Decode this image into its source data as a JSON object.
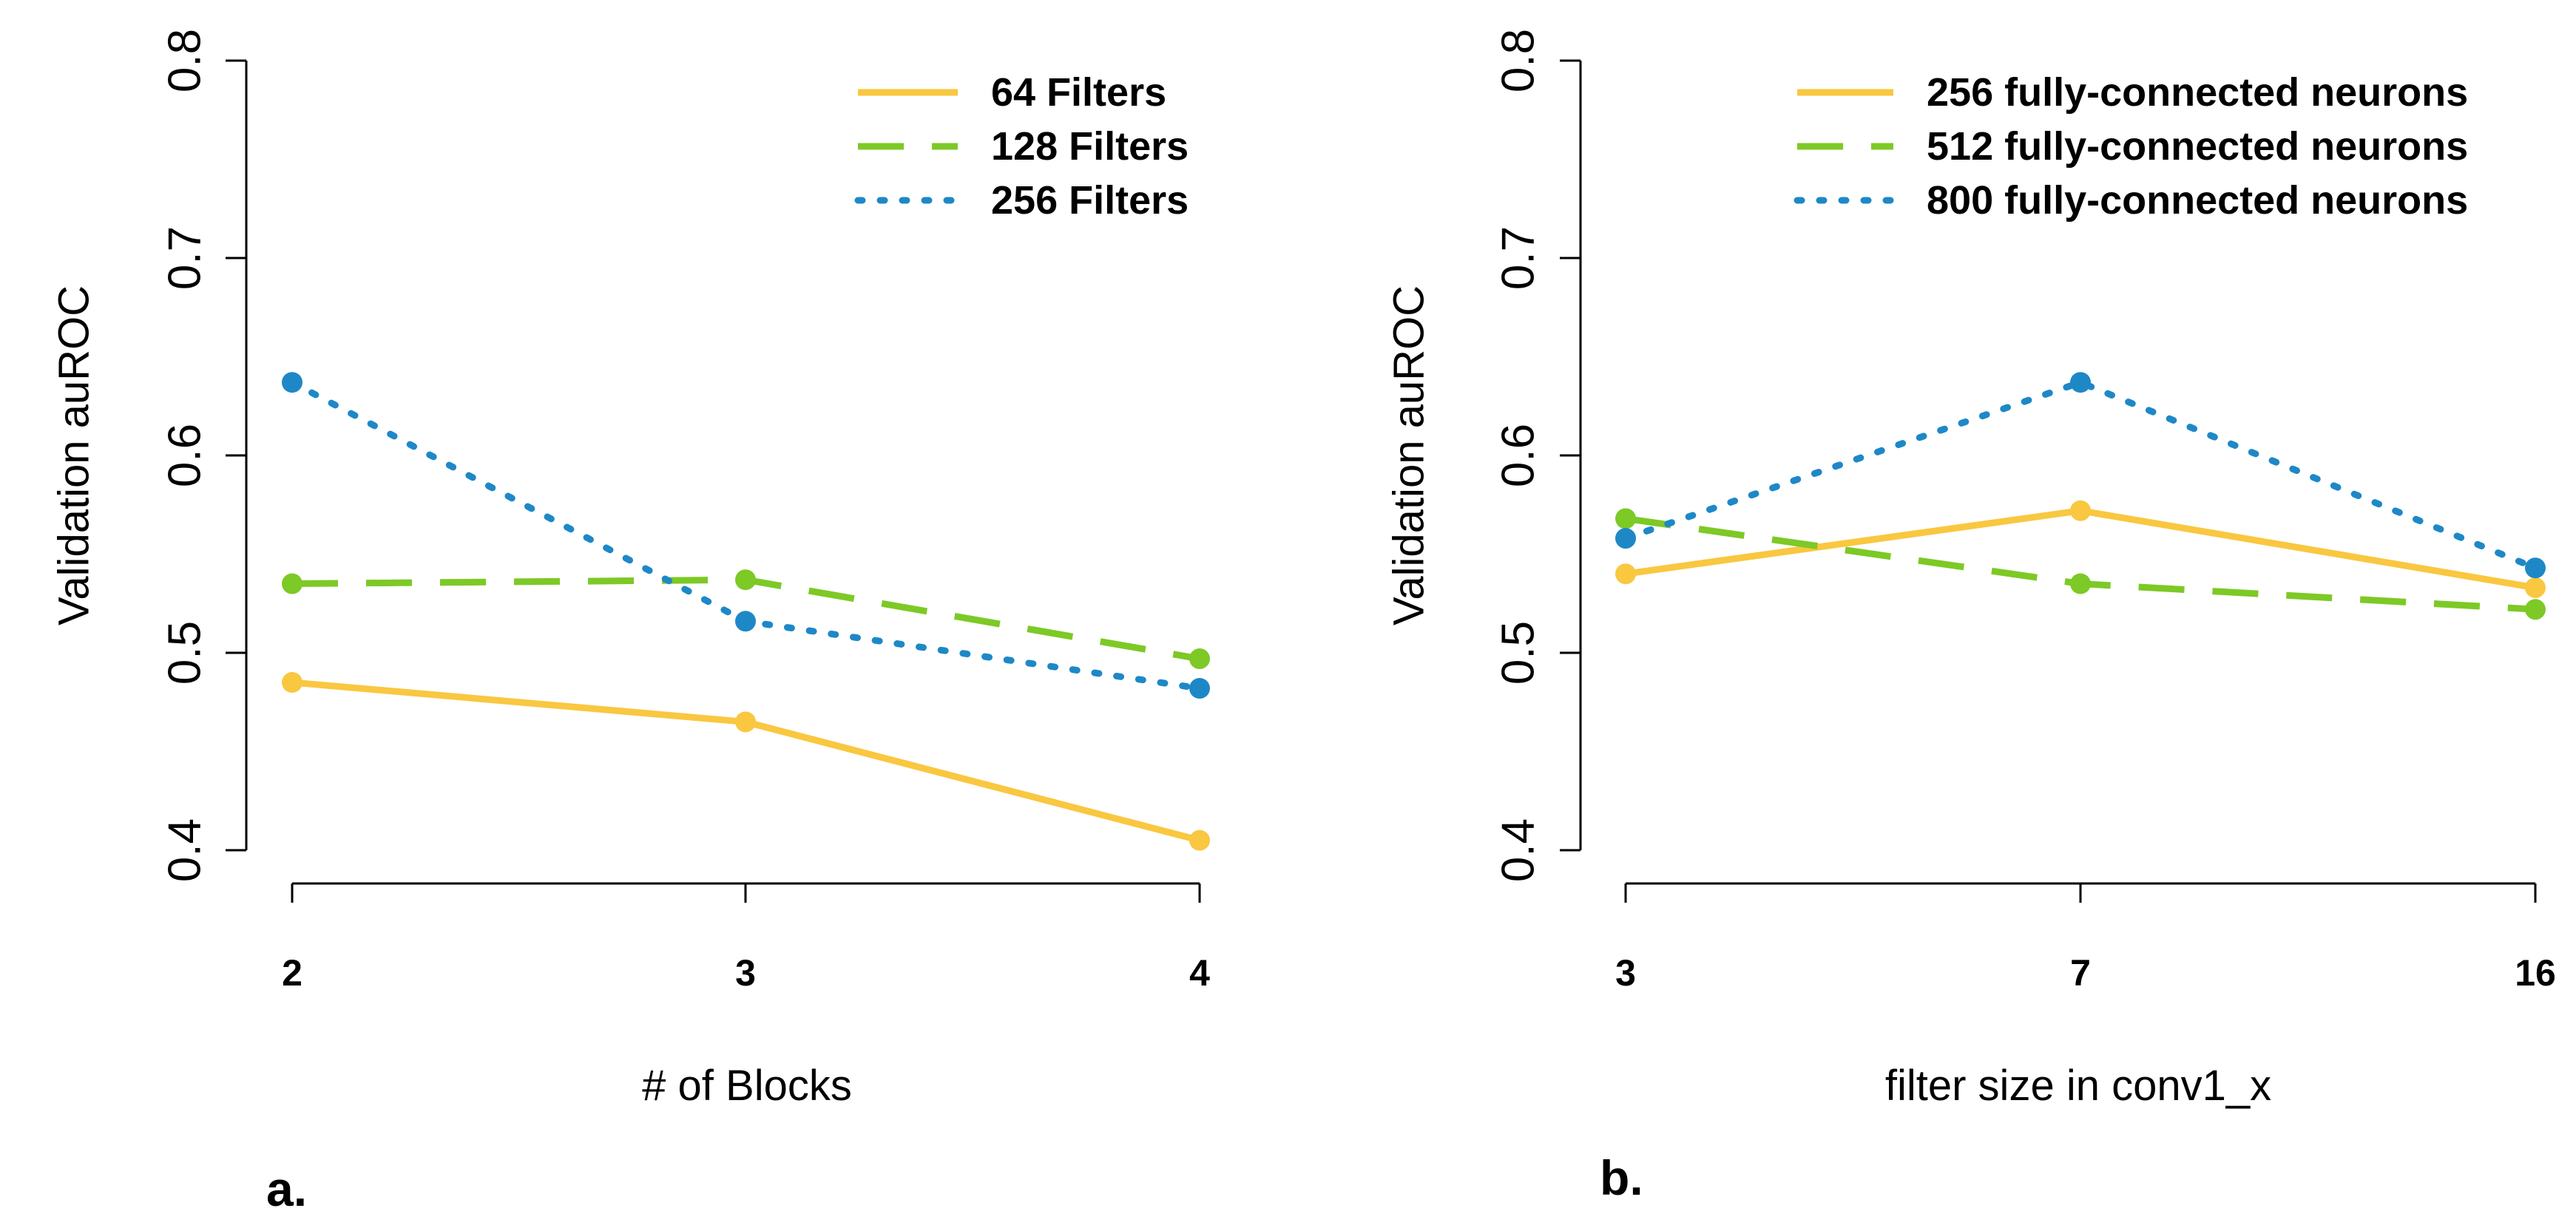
{
  "chart_data": [
    {
      "type": "line",
      "panel_label": "a.",
      "title": "",
      "xlabel": "# of Blocks",
      "ylabel": "Validation auROC",
      "categories": [
        "2",
        "3",
        "4"
      ],
      "ylim": [
        0.4,
        0.8
      ],
      "yticks": [
        "0.4",
        "0.5",
        "0.6",
        "0.7",
        "0.8"
      ],
      "grid": false,
      "legend_position": "top-right",
      "series": [
        {
          "name": "64 Filters",
          "style": "solid",
          "color": "#F9C740",
          "values": [
            0.485,
            0.465,
            0.405
          ]
        },
        {
          "name": "128 Filters",
          "style": "dashed",
          "color": "#7DC926",
          "values": [
            0.535,
            0.537,
            0.497
          ]
        },
        {
          "name": "256 Filters",
          "style": "dotted",
          "color": "#1E88C7",
          "values": [
            0.637,
            0.516,
            0.482
          ]
        }
      ]
    },
    {
      "type": "line",
      "panel_label": "b.",
      "title": "",
      "xlabel": "filter size in conv1_x",
      "ylabel": "Validation auROC",
      "categories": [
        "3",
        "7",
        "16"
      ],
      "ylim": [
        0.4,
        0.8
      ],
      "yticks": [
        "0.4",
        "0.5",
        "0.6",
        "0.7",
        "0.8"
      ],
      "grid": false,
      "legend_position": "top-right",
      "series": [
        {
          "name": "256 fully-connected neurons",
          "style": "solid",
          "color": "#F9C740",
          "values": [
            0.54,
            0.572,
            0.533
          ]
        },
        {
          "name": "512 fully-connected neurons",
          "style": "dashed",
          "color": "#7DC926",
          "values": [
            0.568,
            0.535,
            0.522
          ]
        },
        {
          "name": "800 fully-connected neurons",
          "style": "dotted",
          "color": "#1E88C7",
          "values": [
            0.558,
            0.637,
            0.543
          ]
        }
      ]
    }
  ]
}
